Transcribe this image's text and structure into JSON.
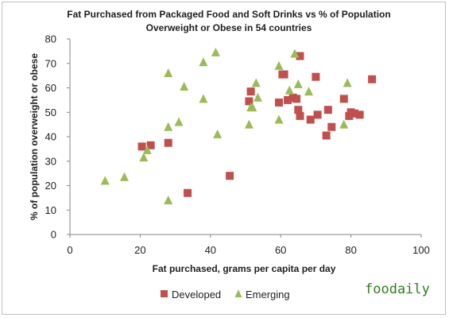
{
  "chart_data": {
    "type": "scatter",
    "title_lines": [
      "Fat Purchased  from Packaged Food and Soft Drinks vs % of Population",
      "Overweight or Obese in 54 countries"
    ],
    "xlabel": "Fat purchased, grams per capita per day",
    "ylabel": "% of population overweight or obese",
    "xlim": [
      0,
      100
    ],
    "ylim": [
      0,
      80
    ],
    "x_ticks": [
      0,
      20,
      40,
      60,
      80,
      100
    ],
    "y_ticks": [
      0,
      10,
      20,
      30,
      40,
      50,
      60,
      70,
      80
    ],
    "grid": false,
    "legend_position": "bottom",
    "series": [
      {
        "name": "Developed",
        "marker": "square",
        "color": "#c0504d",
        "points": [
          [
            20.5,
            36
          ],
          [
            23,
            36.5
          ],
          [
            28,
            37.5
          ],
          [
            33.5,
            17
          ],
          [
            45.5,
            24
          ],
          [
            51,
            54.5
          ],
          [
            51.5,
            58.5
          ],
          [
            59.5,
            54
          ],
          [
            60.5,
            65.5
          ],
          [
            61,
            65.5
          ],
          [
            62,
            55
          ],
          [
            63.5,
            56
          ],
          [
            64.5,
            55.5
          ],
          [
            65,
            51
          ],
          [
            65.5,
            48.5
          ],
          [
            65.5,
            73
          ],
          [
            68.5,
            47
          ],
          [
            70,
            64.5
          ],
          [
            70.5,
            49
          ],
          [
            73,
            40.5
          ],
          [
            73.5,
            51
          ],
          [
            74.5,
            44
          ],
          [
            78,
            55.5
          ],
          [
            79.5,
            48.5
          ],
          [
            80,
            50
          ],
          [
            81,
            49.5
          ],
          [
            82.5,
            49
          ],
          [
            86,
            63.5
          ]
        ]
      },
      {
        "name": "Emerging",
        "marker": "triangle",
        "color": "#9bbb59",
        "points": [
          [
            10,
            22
          ],
          [
            15.5,
            23.5
          ],
          [
            21,
            31.5
          ],
          [
            22,
            34.5
          ],
          [
            28,
            14
          ],
          [
            28,
            44
          ],
          [
            28,
            66
          ],
          [
            31,
            46
          ],
          [
            32.5,
            60.5
          ],
          [
            38,
            55.5
          ],
          [
            38,
            70.5
          ],
          [
            41.5,
            74.5
          ],
          [
            42,
            41
          ],
          [
            51,
            45
          ],
          [
            51.5,
            52
          ],
          [
            52,
            52
          ],
          [
            53,
            62
          ],
          [
            53.5,
            56
          ],
          [
            59.5,
            69
          ],
          [
            59.5,
            47
          ],
          [
            62.5,
            59
          ],
          [
            64,
            74
          ],
          [
            65,
            61.5
          ],
          [
            68,
            58.5
          ],
          [
            78,
            45
          ],
          [
            79,
            62
          ]
        ]
      }
    ]
  },
  "watermark": "foodaily"
}
